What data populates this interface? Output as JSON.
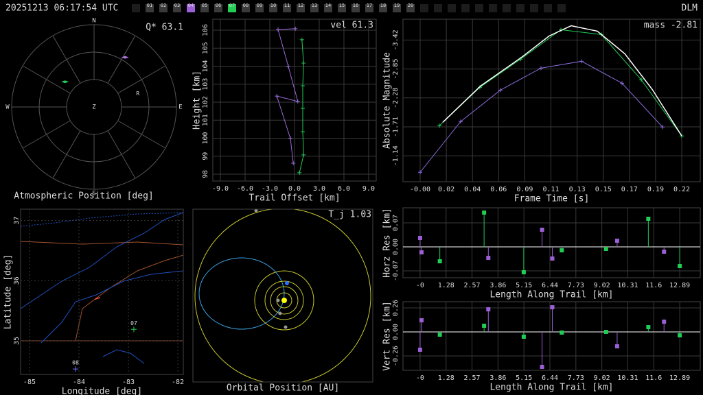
{
  "header": {
    "timestamp": "20251213 06:17:54 UTC",
    "station": "DLM",
    "stations": [
      {
        "label": "01",
        "color": "#3a3a3a"
      },
      {
        "label": "02",
        "color": "#3a3a3a"
      },
      {
        "label": "03",
        "color": "#3a3a3a"
      },
      {
        "label": "04",
        "color": "#9b5fd6"
      },
      {
        "label": "05",
        "color": "#3a3a3a"
      },
      {
        "label": "06",
        "color": "#3a3a3a"
      },
      {
        "label": "07",
        "color": "#22cc55"
      },
      {
        "label": "08",
        "color": "#3a3a3a"
      },
      {
        "label": "09",
        "color": "#3a3a3a"
      },
      {
        "label": "10",
        "color": "#3a3a3a"
      },
      {
        "label": "11",
        "color": "#3a3a3a"
      },
      {
        "label": "12",
        "color": "#3a3a3a"
      },
      {
        "label": "13",
        "color": "#3a3a3a"
      },
      {
        "label": "14",
        "color": "#3a3a3a"
      },
      {
        "label": "15",
        "color": "#3a3a3a"
      },
      {
        "label": "16",
        "color": "#3a3a3a"
      },
      {
        "label": "17",
        "color": "#3a3a3a"
      },
      {
        "label": "18",
        "color": "#3a3a3a"
      },
      {
        "label": "19",
        "color": "#3a3a3a"
      },
      {
        "label": "20",
        "color": "#3a3a3a"
      }
    ]
  },
  "chart_data": [
    {
      "type": "polar",
      "xlabel": "Atmospheric Position [deg]",
      "annotation": "Q* 63.1",
      "directions": [
        "N",
        "E",
        "S",
        "W"
      ],
      "center_label": "Z",
      "rlim": [
        0,
        90
      ],
      "series": [
        {
          "color": "#22cc55",
          "x": [
            311
          ],
          "values": [
            42
          ]
        },
        {
          "color": "#b070e0",
          "x": [
            32
          ],
          "values": [
            64
          ]
        }
      ],
      "labels": [
        {
          "text": "R",
          "x": 73,
          "y": 50
        }
      ]
    },
    {
      "type": "line",
      "xlabel": "Trail Offset [km]",
      "ylabel": "Height [km]",
      "annotation": "vel 61.3",
      "grid": true,
      "xlim": [
        -9.92,
        9.92
      ],
      "xticks": [
        {
          "value": -9,
          "label": "-9.0"
        },
        {
          "value": -6,
          "label": "-6.0"
        },
        {
          "value": -3,
          "label": "-3.0"
        },
        {
          "value": 0,
          "label": "0.0"
        },
        {
          "value": 3,
          "label": "3.0"
        },
        {
          "value": 6,
          "label": "6.0"
        },
        {
          "value": 9,
          "label": "9.0"
        }
      ],
      "ylim": [
        97.62,
        106.61
      ],
      "yticks": [
        98,
        99,
        100,
        101,
        102,
        103,
        104,
        105,
        106
      ],
      "series": [
        {
          "color": "#9b6bd8",
          "marker": "plus",
          "x": [
            0.1,
            -2.0,
            -0.75,
            0.4,
            -2.15,
            -0.5,
            -0.15
          ],
          "values": [
            106.08,
            106.04,
            103.98,
            102.04,
            102.34,
            99.98,
            98.61
          ]
        },
        {
          "color": "#22cc55",
          "marker": "plus",
          "x": [
            0.9,
            1.1,
            1.0,
            1.0,
            1.0,
            1.1,
            0.6
          ],
          "values": [
            105.47,
            104.17,
            102.91,
            101.66,
            100.36,
            99.07,
            98.08
          ]
        }
      ]
    },
    {
      "type": "line",
      "xlabel": "Frame Time [s]",
      "ylabel": "Absolute Magnitude",
      "annotation": "mass -2.81",
      "grid": true,
      "xlim": [
        -0.0141,
        0.2302
      ],
      "xticks": [
        {
          "value": 0,
          "label": "-0.00"
        },
        {
          "value": 0.0215,
          "label": "0.02"
        },
        {
          "value": 0.043,
          "label": "0.04"
        },
        {
          "value": 0.0645,
          "label": "0.06"
        },
        {
          "value": 0.086,
          "label": "0.09"
        },
        {
          "value": 0.1075,
          "label": "0.11"
        },
        {
          "value": 0.129,
          "label": "0.13"
        },
        {
          "value": 0.1505,
          "label": "0.15"
        },
        {
          "value": 0.172,
          "label": "0.17"
        },
        {
          "value": 0.1935,
          "label": "0.19"
        },
        {
          "value": 0.215,
          "label": "0.22"
        }
      ],
      "ylim": [
        -0.63,
        -3.83
      ],
      "yticks": [
        -3.42,
        -2.85,
        -2.28,
        -1.71,
        -1.14
      ],
      "series": [
        {
          "color": "#8a6bd8",
          "marker": "plus",
          "x": [
            0,
            0.0333,
            0.066,
            0.0993,
            0.1326,
            0.1659,
            0.1992
          ],
          "values": [
            -0.816,
            -1.815,
            -2.435,
            -2.867,
            -3.002,
            -2.57,
            -1.707
          ]
        },
        {
          "color": "#22cc55",
          "marker": "plus",
          "x": [
            0.0158,
            0.0491,
            0.0824,
            0.1157,
            0.149,
            0.1817,
            0.215
          ],
          "values": [
            -1.734,
            -2.489,
            -3.042,
            -3.622,
            -3.528,
            -2.638,
            -1.531
          ]
        },
        {
          "color": "#ffffff",
          "marker": "none",
          "x": [
            0.0186,
            0.0497,
            0.0835,
            0.1061,
            0.1241,
            0.1456,
            0.1682,
            0.1907,
            0.215
          ],
          "values": [
            -1.801,
            -2.516,
            -3.083,
            -3.501,
            -3.701,
            -3.595,
            -3.15,
            -2.449,
            -1.531
          ]
        }
      ]
    },
    {
      "type": "map",
      "xlabel": "Longitude [deg]",
      "ylabel": "Latitude [deg]",
      "grid": true,
      "xlim": [
        -85.18,
        -81.89
      ],
      "xticks": [
        -85,
        -84,
        -83,
        -82
      ],
      "ylim": [
        34.44,
        37.19
      ],
      "yticks": [
        35,
        36,
        37
      ],
      "series": [
        {
          "color": "#ff5533",
          "marker": "none",
          "x": [
            -83.68,
            -83.57
          ],
          "values": [
            35.69,
            35.72
          ]
        }
      ],
      "markers": [
        {
          "label": "07",
          "color": "#22cc55",
          "x": -82.89,
          "y": 35.19
        },
        {
          "label": "08",
          "color": "#7070ff",
          "x": -84.07,
          "y": 34.53
        }
      ]
    },
    {
      "type": "orbit",
      "xlabel": "Orbital Position [AU]",
      "annotation": "T_j 1.03"
    },
    {
      "type": "stem",
      "xlabel": "Length Along Trail [km]",
      "ylabel": "Horz Res [km]",
      "grid": true,
      "xlim": [
        -0.86,
        13.91
      ],
      "xticks": [
        {
          "value": -0.01,
          "label": "-0"
        },
        1.28,
        2.57,
        3.86,
        5.15,
        6.44,
        7.73,
        9.02,
        10.31,
        11.6,
        12.89
      ],
      "ylim": [
        -0.09,
        0.114
      ],
      "yticks": [
        0.07,
        {
          "value": 0,
          "label": "0.00"
        },
        -0.07
      ],
      "series": [
        {
          "color": "#9b5fd6",
          "x": [
            -0.01,
            0.06,
            3.38,
            6.05,
            6.56,
            9.78,
            12.11
          ],
          "values": [
            0.026,
            -0.016,
            -0.032,
            0.05,
            -0.034,
            0.018,
            -0.014
          ]
        },
        {
          "color": "#22cc55",
          "x": [
            0.97,
            3.17,
            5.14,
            7.03,
            9.23,
            11.33,
            12.89
          ],
          "values": [
            -0.042,
            0.1,
            -0.074,
            -0.01,
            -0.006,
            0.082,
            -0.056
          ]
        }
      ]
    },
    {
      "type": "stem",
      "xlabel": "Length Along Trail [km]",
      "ylabel": "Vert Res [km]",
      "grid": true,
      "xlim": [
        -0.86,
        13.91
      ],
      "xticks": [
        {
          "value": -0.01,
          "label": "-0"
        },
        1.28,
        2.57,
        3.86,
        5.15,
        6.44,
        7.73,
        9.02,
        10.31,
        11.6,
        12.89
      ],
      "ylim": [
        -0.416,
        0.327
      ],
      "yticks": [
        0.26,
        {
          "value": 0,
          "label": "0.00"
        },
        -0.26
      ],
      "series": [
        {
          "color": "#9b5fd6",
          "x": [
            -0.01,
            0.06,
            3.38,
            6.05,
            6.56,
            9.78,
            12.11
          ],
          "values": [
            -0.193,
            0.126,
            0.245,
            -0.379,
            0.267,
            -0.156,
            0.111
          ]
        },
        {
          "color": "#22cc55",
          "x": [
            0.97,
            3.17,
            5.14,
            7.03,
            9.23,
            11.33,
            12.89
          ],
          "values": [
            -0.03,
            0.067,
            -0.052,
            -0.007,
            0,
            0.052,
            -0.037
          ]
        }
      ]
    }
  ]
}
